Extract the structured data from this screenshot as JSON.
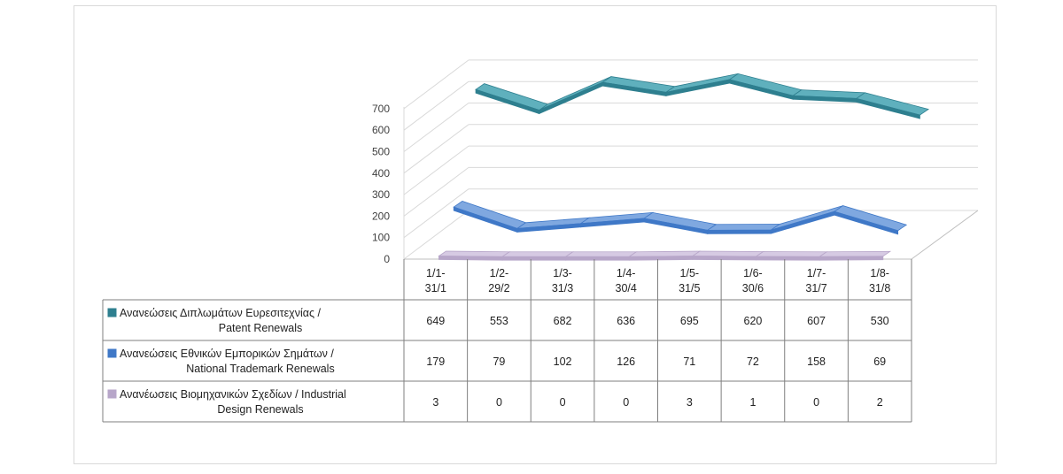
{
  "chart_data": {
    "type": "line",
    "style": "3d-line-with-data-table",
    "title": "",
    "xlabel": "",
    "ylabel": "",
    "ylim": [
      0,
      700
    ],
    "yticks": [
      0,
      100,
      200,
      300,
      400,
      500,
      600,
      700
    ],
    "grid": true,
    "categories": [
      [
        "1/1-",
        "31/1"
      ],
      [
        "1/2-",
        "29/2"
      ],
      [
        "1/3-",
        "31/3"
      ],
      [
        "1/4-",
        "30/4"
      ],
      [
        "1/5-",
        "31/5"
      ],
      [
        "1/6-",
        "30/6"
      ],
      [
        "1/7-",
        "31/7"
      ],
      [
        "1/8-",
        "31/8"
      ]
    ],
    "series": [
      {
        "name_lines": [
          "Ανανεώσεις Διπλωμάτων Ευρεσιτεχνίας  /",
          "Patent Renewals"
        ],
        "values": [
          649,
          553,
          682,
          636,
          695,
          620,
          607,
          530
        ],
        "color": "#2e7f8f",
        "highlight": "#5fb0bd"
      },
      {
        "name_lines": [
          "Ανανεώσεις Εθνικών Εμπορικών Σημάτων /",
          "National Trademark Renewals"
        ],
        "values": [
          179,
          79,
          102,
          126,
          71,
          72,
          158,
          69
        ],
        "color": "#3f78c7",
        "highlight": "#7fa8e0"
      },
      {
        "name_lines": [
          "Ανανέωσεις Βιομηχανικών Σχεδίων / Industrial",
          "Design Renewals"
        ],
        "values": [
          3,
          0,
          0,
          0,
          3,
          1,
          0,
          2
        ],
        "color": "#b7a6c9",
        "highlight": "#d6cae3"
      }
    ]
  }
}
